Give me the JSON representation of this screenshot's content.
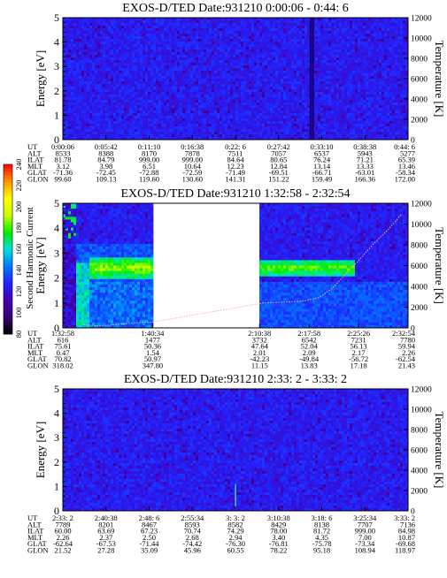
{
  "chart_data": [
    {
      "type": "heatmap",
      "title": "EXOS-D/TED   Date:931210   0:00:06 - 0:44: 6",
      "ylabel": "Energy [eV]",
      "y2label": "Temperature [K]",
      "ylim": [
        0,
        5
      ],
      "y2lim": [
        0,
        12000
      ],
      "yticks": [
        "0",
        "1",
        "2",
        "3",
        "4",
        "5"
      ],
      "y2ticks": [
        "0",
        "2000",
        "4000",
        "6000",
        "8000",
        "10000",
        "12000"
      ],
      "xlim_labels": [
        "0:00:06",
        "0:44: 6"
      ],
      "gap": null,
      "band": null,
      "spike": {
        "x_fraction": 0.72,
        "value": 90
      },
      "table": {
        "rows": [
          "UT",
          "ALT",
          "ILAT",
          "MLT",
          "GLAT",
          "GLON"
        ],
        "columns": [
          [
            "0:00:06",
            "8533",
            "81.78",
            "3.12",
            "-71.36",
            "99.60"
          ],
          [
            "0:05:42",
            "8388",
            "84.79",
            "3.98",
            "-72.45",
            "109.13"
          ],
          [
            "0:11:10",
            "8170",
            "999.00",
            "6.51",
            "-72.88",
            "119.60"
          ],
          [
            "0:16:38",
            "7878",
            "999.00",
            "10.64",
            "-72.59",
            "130.60"
          ],
          [
            "0:22: 6",
            "7511",
            "84.64",
            "12.23",
            "-71.49",
            "141.31"
          ],
          [
            "0:27:42",
            "7057",
            "80.65",
            "12.84",
            "-69.51",
            "151.22"
          ],
          [
            "0:33:10",
            "6537",
            "76.24",
            "13.14",
            "-66.71",
            "159.49"
          ],
          [
            "0:38:38",
            "5943",
            "71.21",
            "13.33",
            "-63.01",
            "166.36"
          ],
          [
            "0:44: 6",
            "5277",
            "65.39",
            "13.46",
            "-58.34",
            "172.00"
          ]
        ]
      }
    },
    {
      "type": "heatmap",
      "title": "EXOS-D/TED   Date:931210   1:32:58 - 2:32:54",
      "ylabel": "Energy [eV]",
      "y2label": "Temperature [K]",
      "ylim": [
        0,
        5
      ],
      "y2lim": [
        0,
        12000
      ],
      "yticks": [
        "0",
        "1",
        "2",
        "3",
        "4",
        "5"
      ],
      "y2ticks": [
        "0",
        "2000",
        "4000",
        "6000",
        "8000",
        "10000",
        "12000"
      ],
      "xlim_labels": [
        "1:32:58",
        "2:32:54"
      ],
      "gap": {
        "from": 0.26,
        "to": 0.57
      },
      "band": {
        "energy_center": 2.4,
        "intensity": 180
      },
      "spike": null,
      "temperature_series": [
        [
          0.06,
          300
        ],
        [
          0.1,
          200
        ],
        [
          0.14,
          260
        ],
        [
          0.18,
          420
        ],
        [
          0.22,
          500
        ],
        [
          0.26,
          560
        ],
        [
          0.58,
          2400
        ],
        [
          0.62,
          2450
        ],
        [
          0.66,
          2500
        ],
        [
          0.7,
          2600
        ],
        [
          0.74,
          2900
        ],
        [
          0.78,
          3800
        ],
        [
          0.82,
          5200
        ],
        [
          0.86,
          6600
        ],
        [
          0.9,
          8100
        ],
        [
          0.94,
          9400
        ],
        [
          0.98,
          10900
        ]
      ],
      "table": {
        "rows": [
          "UT",
          "ALT",
          "ILAT",
          "MLT",
          "GLAT",
          "GLON"
        ],
        "columns": [
          [
            "1:32:58",
            "616",
            "75.61",
            "0.47",
            "70.82",
            "318.02"
          ],
          [
            "1:40:34",
            "1477",
            "50.36",
            "1.54",
            "50.97",
            "347.80"
          ],
          [
            "2:10:38",
            "3732",
            "47.64",
            "2.01",
            "-42.23",
            "11.15"
          ],
          [
            "2:17:58",
            "6542",
            "52.04",
            "2.09",
            "-49.84",
            "13.83"
          ],
          [
            "2:25:26",
            "7231",
            "56.13",
            "2.17",
            "-56.72",
            "17.18"
          ],
          [
            "2:32:54",
            "7780",
            "59.94",
            "2.26",
            "-62.54",
            "21.43"
          ]
        ]
      }
    },
    {
      "type": "heatmap",
      "title": "EXOS-D/TED   Date:931210   2:33: 2 - 3:33: 2",
      "ylabel": "Energy [eV]",
      "y2label": "Temperature [K]",
      "ylim": [
        0,
        5
      ],
      "y2lim": [
        0,
        12000
      ],
      "yticks": [
        "0",
        "1",
        "2",
        "3",
        "4",
        "5"
      ],
      "y2ticks": [
        "0",
        "2000",
        "4000",
        "6000",
        "8000",
        "10000",
        "12000"
      ],
      "xlim_labels": [
        "2:33: 2",
        "3:33: 2"
      ],
      "gap": null,
      "band": null,
      "spike": {
        "x_fraction": 0.5,
        "value": 140
      },
      "table": {
        "rows": [
          "UT",
          "ALT",
          "ILAT",
          "MLT",
          "GLAT",
          "GLON"
        ],
        "columns": [
          [
            "2:33: 2",
            "7789",
            "60.00",
            "2.26",
            "-62.64",
            "21.52"
          ],
          [
            "2:40:38",
            "8201",
            "63.69",
            "2.37",
            "-67.53",
            "27.28"
          ],
          [
            "2:48: 6",
            "8467",
            "67.23",
            "2.50",
            "-71.44",
            "35.09"
          ],
          [
            "2:55:34",
            "8593",
            "70.74",
            "2.68",
            "-74.42",
            "45.96"
          ],
          [
            "3: 3: 2",
            "8582",
            "74.29",
            "2.94",
            "-76.30",
            "60.55"
          ],
          [
            "3:10:38",
            "8429",
            "78.00",
            "3.40",
            "-76.81",
            "78.22"
          ],
          [
            "3:18: 6",
            "8138",
            "81.72",
            "4.35",
            "-75.78",
            "95.18"
          ],
          [
            "3:25:34",
            "7707",
            "999.00",
            "7.00",
            "-73.34",
            "108.94"
          ],
          [
            "3:33: 2",
            "7136",
            "84.98",
            "10.87",
            "-69.68",
            "118.97"
          ]
        ]
      }
    }
  ],
  "colorbar": {
    "label": "Second Harmonic Current",
    "ticks": [
      "80",
      "100",
      "120",
      "140",
      "160",
      "180",
      "200",
      "220",
      "240"
    ],
    "min": 80,
    "max": 240,
    "colors": [
      "#000000",
      "#3a0070",
      "#4400b0",
      "#2222ff",
      "#0077ff",
      "#00e0e0",
      "#00ee00",
      "#c8ff00",
      "#ffff00",
      "#ff9900",
      "#ff0000"
    ]
  }
}
